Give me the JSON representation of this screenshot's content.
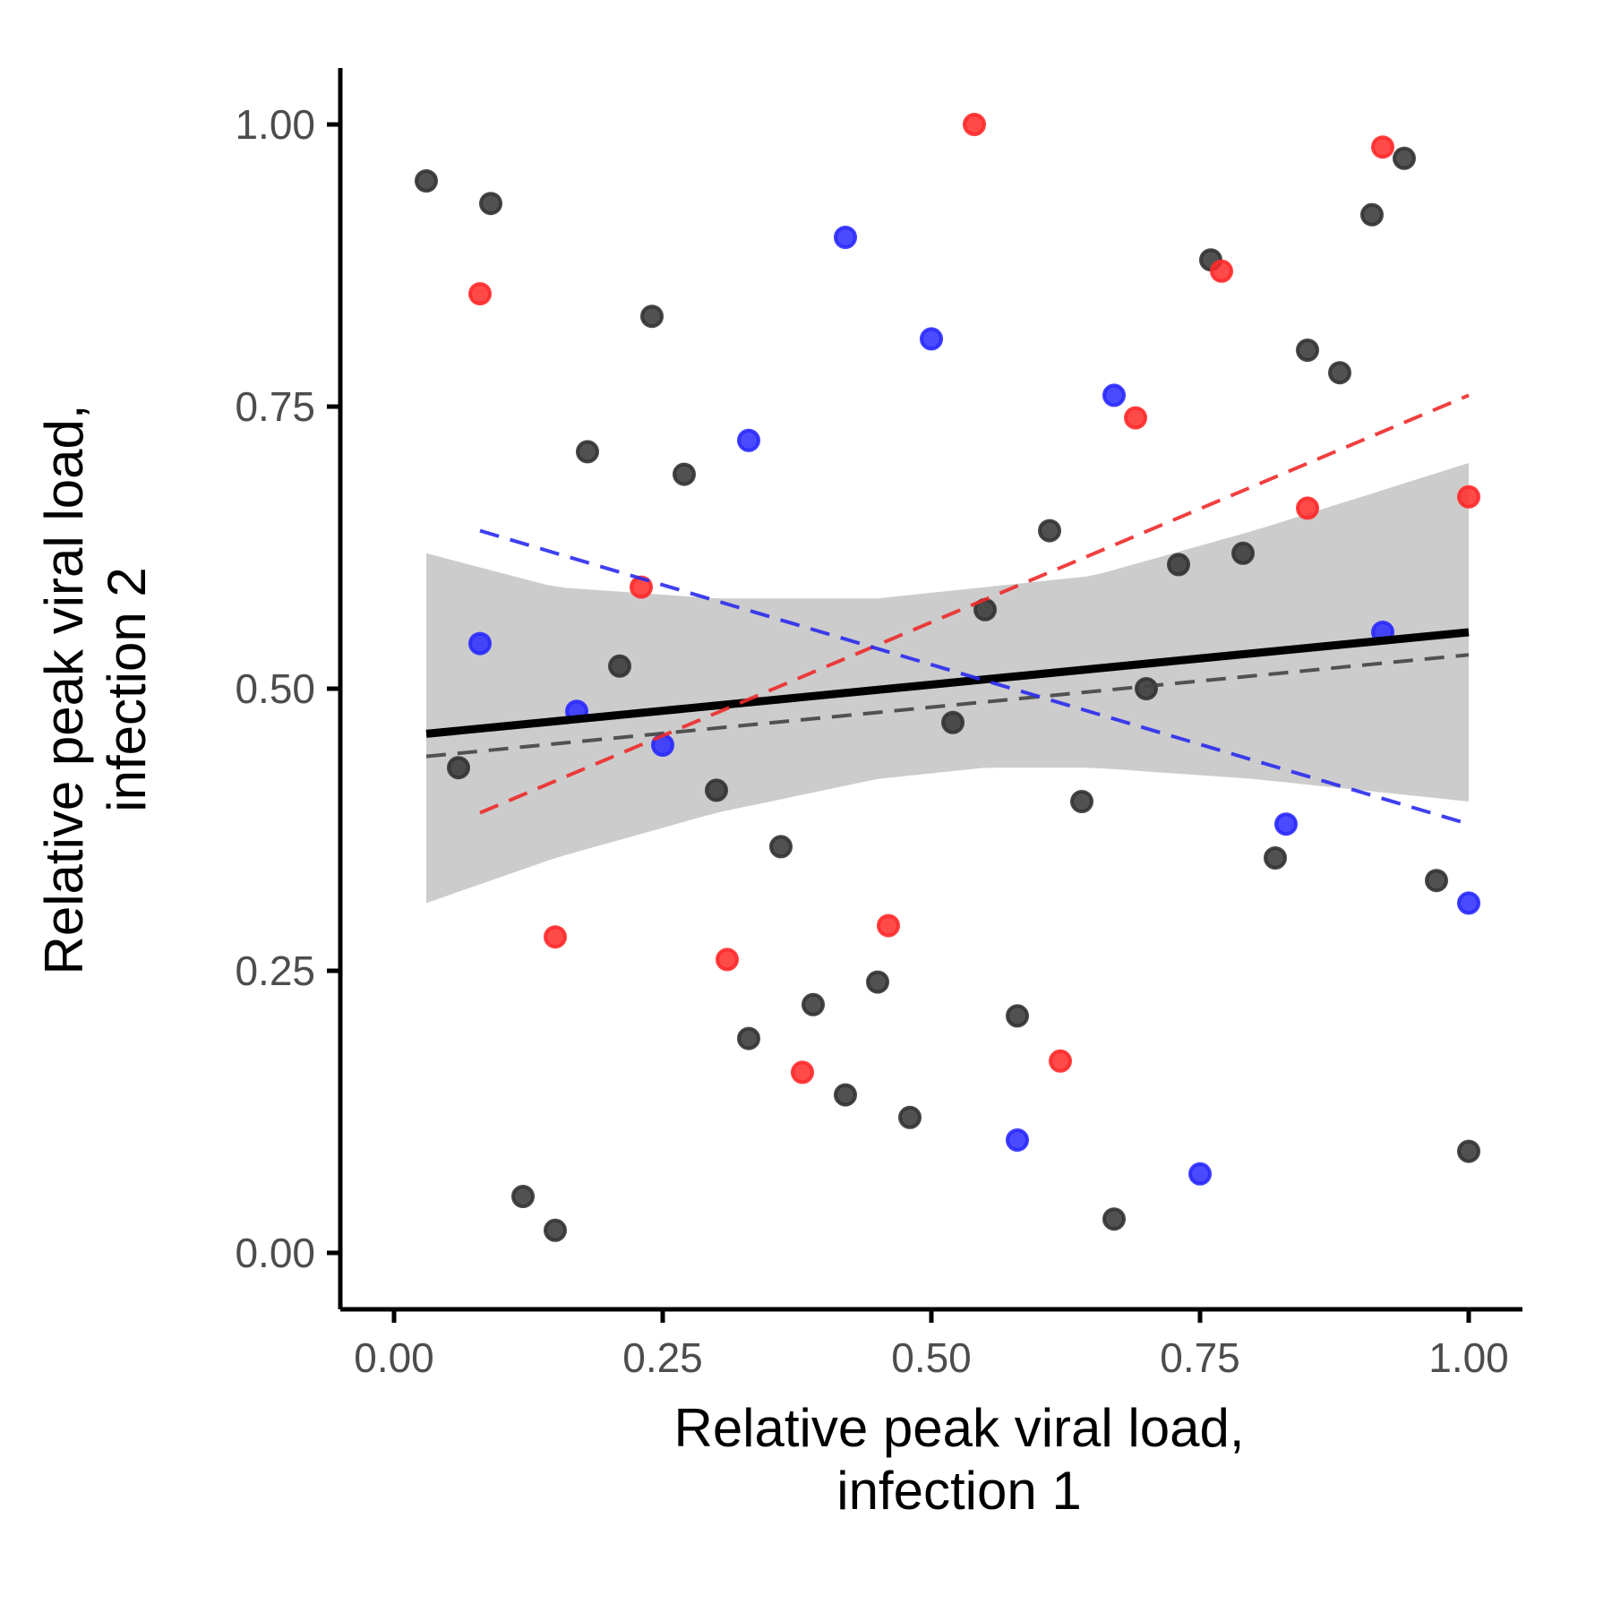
{
  "chart_data": {
    "type": "scatter",
    "xlabel": [
      "Relative peak viral load,",
      "infection 1"
    ],
    "ylabel": [
      "Relative peak viral load,",
      "infection 2"
    ],
    "xlim": [
      -0.05,
      1.05
    ],
    "ylim": [
      -0.05,
      1.05
    ],
    "x_ticks": [
      "0.00",
      "0.25",
      "0.50",
      "0.75",
      "1.00"
    ],
    "y_ticks": [
      "0.00",
      "0.25",
      "0.50",
      "0.75",
      "1.00"
    ],
    "grid": false,
    "legend": "none",
    "colors": {
      "black": "#333333",
      "red": "#ff2a2a",
      "blue": "#2a2aff",
      "band": "#cccccc"
    },
    "series": [
      {
        "color": "black",
        "points": [
          [
            0.03,
            0.95
          ],
          [
            0.09,
            0.93
          ],
          [
            0.24,
            0.83
          ],
          [
            0.18,
            0.71
          ],
          [
            0.27,
            0.69
          ],
          [
            0.21,
            0.52
          ],
          [
            0.06,
            0.43
          ],
          [
            0.3,
            0.41
          ],
          [
            0.36,
            0.36
          ],
          [
            0.12,
            0.05
          ],
          [
            0.15,
            0.02
          ],
          [
            0.33,
            0.19
          ],
          [
            0.39,
            0.22
          ],
          [
            0.42,
            0.14
          ],
          [
            0.45,
            0.24
          ],
          [
            0.48,
            0.12
          ],
          [
            0.52,
            0.47
          ],
          [
            0.55,
            0.57
          ],
          [
            0.58,
            0.21
          ],
          [
            0.61,
            0.64
          ],
          [
            0.64,
            0.4
          ],
          [
            0.67,
            0.03
          ],
          [
            0.7,
            0.5
          ],
          [
            0.73,
            0.61
          ],
          [
            0.76,
            0.88
          ],
          [
            0.79,
            0.62
          ],
          [
            0.82,
            0.35
          ],
          [
            0.85,
            0.8
          ],
          [
            0.88,
            0.78
          ],
          [
            0.91,
            0.92
          ],
          [
            0.94,
            0.97
          ],
          [
            0.97,
            0.33
          ],
          [
            1.0,
            0.09
          ]
        ]
      },
      {
        "color": "red",
        "points": [
          [
            0.54,
            1.0
          ],
          [
            0.92,
            0.98
          ],
          [
            0.08,
            0.85
          ],
          [
            0.77,
            0.87
          ],
          [
            0.69,
            0.74
          ],
          [
            0.85,
            0.66
          ],
          [
            1.0,
            0.67
          ],
          [
            0.23,
            0.59
          ],
          [
            0.15,
            0.28
          ],
          [
            0.31,
            0.26
          ],
          [
            0.46,
            0.29
          ],
          [
            0.38,
            0.16
          ],
          [
            0.62,
            0.17
          ]
        ]
      },
      {
        "color": "blue",
        "points": [
          [
            0.42,
            0.9
          ],
          [
            0.5,
            0.81
          ],
          [
            0.33,
            0.72
          ],
          [
            0.67,
            0.76
          ],
          [
            0.08,
            0.54
          ],
          [
            0.17,
            0.48
          ],
          [
            0.25,
            0.45
          ],
          [
            0.92,
            0.55
          ],
          [
            0.83,
            0.38
          ],
          [
            1.0,
            0.31
          ],
          [
            0.58,
            0.1
          ],
          [
            0.75,
            0.07
          ]
        ]
      }
    ],
    "fit_overall": {
      "x": [
        0.03,
        1.0
      ],
      "y": [
        0.46,
        0.55
      ],
      "style": "solid",
      "color": "black"
    },
    "confidence_band": {
      "x": [
        0.03,
        0.15,
        0.3,
        0.45,
        0.55,
        0.65,
        0.8,
        1.0
      ],
      "lower": [
        0.31,
        0.35,
        0.39,
        0.42,
        0.43,
        0.43,
        0.42,
        0.4
      ],
      "upper": [
        0.62,
        0.59,
        0.58,
        0.58,
        0.59,
        0.6,
        0.64,
        0.7
      ]
    },
    "fit_lines": [
      {
        "color": "black",
        "style": "dashed",
        "x": [
          0.03,
          1.0
        ],
        "y": [
          0.44,
          0.53
        ]
      },
      {
        "color": "red",
        "style": "dashed",
        "x": [
          0.08,
          1.0
        ],
        "y": [
          0.39,
          0.76
        ]
      },
      {
        "color": "blue",
        "style": "dashed",
        "x": [
          0.08,
          1.0
        ],
        "y": [
          0.64,
          0.38
        ]
      }
    ]
  }
}
